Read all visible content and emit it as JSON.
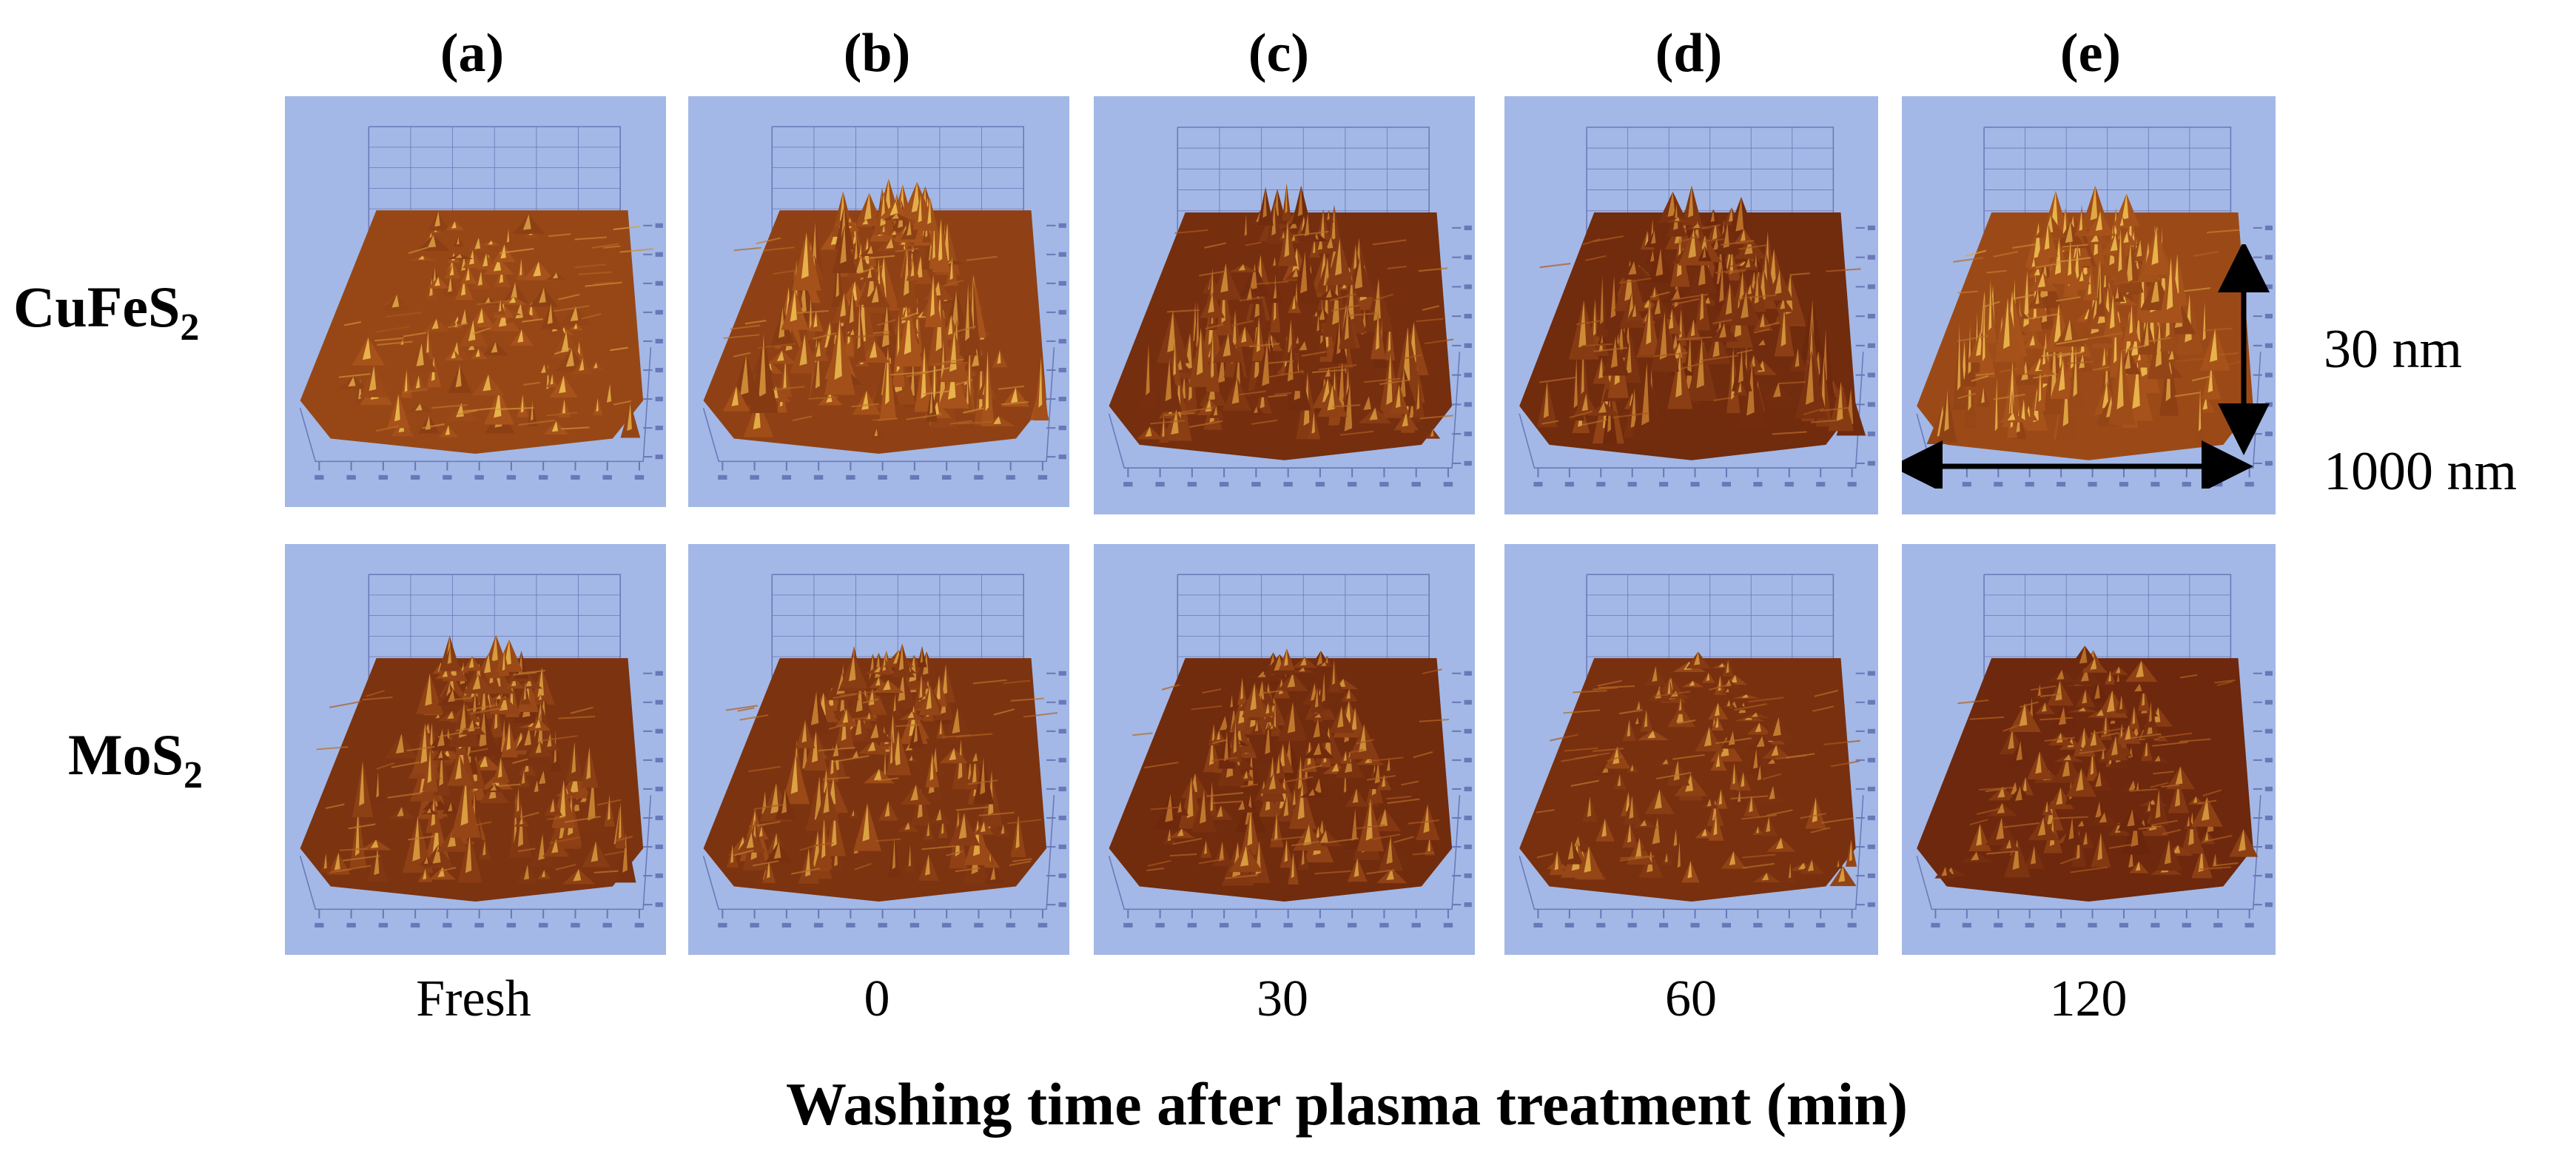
{
  "column_labels": [
    "(a)",
    "(b)",
    "(c)",
    "(d)",
    "(e)"
  ],
  "row_labels": {
    "row1": {
      "base": "CuFeS",
      "sub": "2"
    },
    "row2": {
      "base": "MoS",
      "sub": "2"
    }
  },
  "x_ticks": [
    "Fresh",
    "0",
    "30",
    "60",
    "120"
  ],
  "x_axis_title": "Washing time after plasma treatment (min)",
  "scale": {
    "vertical": "30 nm",
    "horizontal": "1000 nm"
  },
  "colors": {
    "panel_bg": "#a3b8e6",
    "surface_dark": "#5a1a08",
    "surface_mid": "#a6521a",
    "surface_light": "#e8b34a",
    "grid": "#6a78b8"
  }
}
